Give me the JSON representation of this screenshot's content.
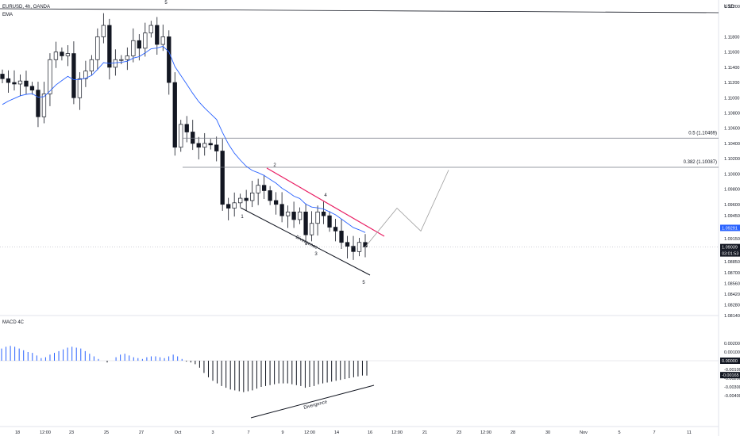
{
  "header": {
    "symbol_label": "EURUSD, 4h, OANDA",
    "ema_label": "EMA",
    "macd_label": "MACD 4C"
  },
  "price_axis": {
    "currency_label": "USD",
    "ticks": [
      1.122,
      1.118,
      1.116,
      1.114,
      1.112,
      1.11,
      1.108,
      1.106,
      1.104,
      1.102,
      1.1,
      1.098,
      1.096,
      1.0945,
      1.0915,
      1.0885,
      1.087,
      1.0856,
      1.0842,
      1.0828,
      1.0814
    ],
    "tick_labels": [
      "1.12200",
      "1.11800",
      "1.11600",
      "1.11400",
      "1.11200",
      "1.11000",
      "1.10800",
      "1.10600",
      "1.10400",
      "1.10200",
      "1.10000",
      "1.09800",
      "1.09600",
      "1.09450",
      "1.09150",
      "1.08850",
      "1.08700",
      "1.08560",
      "1.08420",
      "1.08280",
      "1.08140"
    ],
    "badges": [
      {
        "text": "1.09291",
        "color": "#2962ff"
      },
      {
        "text": "1.09039",
        "color": "#131722"
      },
      {
        "text": "03:01:53",
        "color": "#131722"
      }
    ]
  },
  "macd_axis": {
    "tick_labels": [
      "0.00200",
      "0.00100",
      "0.00000",
      "-0.00100",
      "-0.00165",
      "-0.00200",
      "-0.00300",
      "-0.00400"
    ],
    "badges": [
      {
        "text": "0.00000",
        "color": "#131722"
      },
      {
        "text": "-0.00165",
        "color": "#131722"
      }
    ]
  },
  "time_axis": {
    "labels": [
      "18",
      "12:00",
      "23",
      "25",
      "27",
      "Oct",
      "3",
      "7",
      "9",
      "12:00",
      "14",
      "16",
      "12:00",
      "21",
      "23",
      "12:00",
      "28",
      "30",
      "Nov",
      "5",
      "7",
      "11"
    ]
  },
  "annotations": {
    "wave_top": "5",
    "wave_1": "1",
    "wave_2": "2",
    "wave_3": "3",
    "wave_4": "4",
    "wave_5": "5",
    "fib_05": "0.5 (1.10469)",
    "fib_0382": "0.382 (1.10087)",
    "divergence_price": "Divergence",
    "divergence_macd": "Divergence"
  },
  "colors": {
    "bull_candle": "#ffffff",
    "bear_candle": "#131722",
    "ema_line": "#2962ff",
    "macd_positive": "#2962ff",
    "macd_negative": "#131722",
    "resistance_line": "#e91e63",
    "projection_line": "#9e9e9e",
    "grid": "#f0f3fa"
  },
  "chart_data": {
    "type": "candlestick",
    "instrument": "EURUSD",
    "timeframe": "4h",
    "source": "OANDA",
    "ylim": [
      1.0814,
      1.122
    ],
    "fib_levels": [
      {
        "label": "0.5 (1.10469)",
        "value": 1.10469
      },
      {
        "label": "0.382 (1.10087)",
        "value": 1.10087
      }
    ],
    "current_price": 1.09039,
    "ema_value": 1.09291,
    "price_path": [
      1.1125,
      1.112,
      1.1118,
      1.1122,
      1.1115,
      1.111,
      1.1075,
      1.1105,
      1.115,
      1.116,
      1.1155,
      1.1158,
      1.11,
      1.1125,
      1.1135,
      1.115,
      1.118,
      1.1195,
      1.114,
      1.115,
      1.115,
      1.1155,
      1.1175,
      1.1165,
      1.1185,
      1.1195,
      1.117,
      1.118,
      1.112,
      1.1035,
      1.1065,
      1.1055,
      1.104,
      1.1035,
      1.104,
      1.1038,
      1.103,
      1.096,
      1.0955,
      1.0962,
      1.0968,
      1.0965,
      1.0975,
      1.0985,
      1.0978,
      1.0965,
      1.096,
      1.0945,
      1.095,
      1.094,
      1.095,
      1.092,
      1.0935,
      1.095,
      1.0945,
      1.093,
      1.0925,
      1.091,
      1.0905,
      1.0898,
      1.091,
      1.0904
    ],
    "projection": [
      1.0904,
      1.0955,
      1.0925,
      1.1005
    ],
    "macd_hist": [
      0.0014,
      0.0016,
      0.0017,
      0.0016,
      0.0014,
      0.0012,
      0.001,
      0.0009,
      0.0006,
      0.0003,
      0.0004,
      0.0007,
      0.0009,
      0.0011,
      0.0013,
      0.0015,
      0.0016,
      0.0015,
      0.0014,
      0.0011,
      0.0008,
      0.0005,
      0.0002,
      0.0,
      -0.0002,
      0.0,
      0.0004,
      0.0007,
      0.0008,
      0.0006,
      0.0004,
      0.0003,
      0.0002,
      0.0004,
      0.0005,
      0.0005,
      0.0004,
      0.0003,
      0.0005,
      0.0007,
      0.0005,
      0.0002,
      -0.0001,
      -0.0002,
      -0.0004,
      -0.0008,
      -0.0014,
      -0.0019,
      -0.0023,
      -0.0026,
      -0.0029,
      -0.0031,
      -0.0033,
      -0.0034,
      -0.0035,
      -0.0036,
      -0.0035,
      -0.0034,
      -0.0032,
      -0.003,
      -0.0029,
      -0.0028,
      -0.0027,
      -0.0026,
      -0.0026,
      -0.0026,
      -0.0027,
      -0.0028,
      -0.0029,
      -0.0031,
      -0.003,
      -0.0029,
      -0.0027,
      -0.0026,
      -0.0025,
      -0.0024,
      -0.0023,
      -0.0022,
      -0.0021,
      -0.002,
      -0.0019,
      -0.0018,
      -0.0017,
      -0.0017
    ]
  }
}
